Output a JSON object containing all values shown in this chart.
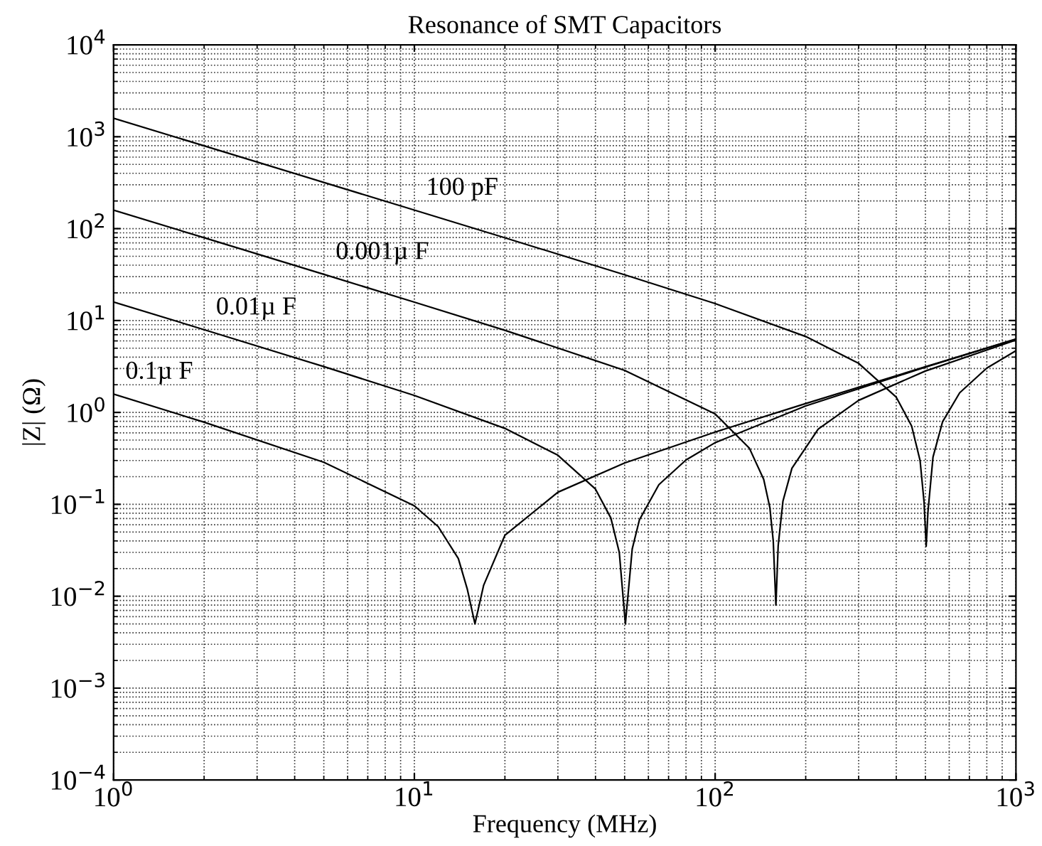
{
  "chart_data": {
    "type": "line",
    "title": "Resonance of SMT Capacitors",
    "xlabel": "Frequency (MHz)",
    "ylabel": "|Z| (Ω)",
    "log": "xy",
    "grid": true,
    "marker": "none",
    "line_style": "solid",
    "xlim": [
      1,
      1000
    ],
    "ylim": [
      0.0001,
      10000
    ],
    "xticks": [
      {
        "value": 1,
        "label": "10$^{0}$"
      },
      {
        "value": 10,
        "label": "10$^{1}$"
      },
      {
        "value": 100,
        "label": "10$^{2}$"
      },
      {
        "value": 1000,
        "label": "10$^{3}$"
      }
    ],
    "yticks": [
      {
        "value": 0.0001,
        "label": "10$^{−4}$"
      },
      {
        "value": 0.001,
        "label": "10$^{−3}$"
      },
      {
        "value": 0.01,
        "label": "10$^{−2}$"
      },
      {
        "value": 0.1,
        "label": "10$^{−1}$"
      },
      {
        "value": 1,
        "label": "10$^{0}$"
      },
      {
        "value": 10,
        "label": "10$^{1}$"
      },
      {
        "value": 100,
        "label": "10$^{2}$"
      },
      {
        "value": 1000,
        "label": "10$^{3}$"
      },
      {
        "value": 10000,
        "label": "10$^{4}$"
      }
    ],
    "series": [
      {
        "name": "100 pF",
        "color": "#000000",
        "x": [
          1,
          2,
          5,
          10,
          20,
          50,
          100,
          200,
          300,
          400,
          450,
          480,
          495,
          503,
          510,
          530,
          570,
          650,
          800,
          1000
        ],
        "values": [
          1591,
          795.7,
          318.3,
          159.1,
          79.45,
          31.5,
          15.29,
          6.7,
          3.42,
          1.466,
          0.71,
          0.3,
          0.105,
          0.035,
          0.0838,
          0.327,
          0.789,
          1.636,
          3.037,
          4.692
        ]
      },
      {
        "name": "0.001µ F",
        "color": "#000000",
        "x": [
          1,
          2,
          5,
          10,
          20,
          50,
          100,
          130,
          145,
          152,
          156,
          159.2,
          162,
          168,
          180,
          220,
          300,
          500,
          1000
        ],
        "values": [
          159.15,
          79.57,
          31.8,
          15.85,
          7.83,
          2.869,
          0.963,
          0.407,
          0.187,
          0.092,
          0.04,
          0.008,
          0.0355,
          0.108,
          0.247,
          0.659,
          1.354,
          2.823,
          6.124
        ]
      },
      {
        "name": "0.01µ F",
        "color": "#000000",
        "x": [
          1,
          2,
          5,
          10,
          20,
          30,
          40,
          45,
          48,
          50.3,
          53,
          56,
          65,
          80,
          100,
          200,
          500,
          1000
        ],
        "values": [
          15.909,
          7.95,
          3.152,
          1.529,
          0.67,
          0.342,
          0.1466,
          0.071,
          0.03,
          0.005,
          0.0327,
          0.0677,
          0.1636,
          0.304,
          0.469,
          1.177,
          3.11,
          6.267
        ]
      },
      {
        "name": "0.1µ F",
        "color": "#000000",
        "x": [
          1,
          2,
          5,
          10,
          12,
          14,
          15,
          15.9,
          17,
          20,
          30,
          50,
          100,
          200,
          500,
          1000
        ],
        "values": [
          1.585,
          0.783,
          0.287,
          0.0963,
          0.0572,
          0.0257,
          0.0119,
          0.005,
          0.0132,
          0.0461,
          0.1354,
          0.282,
          0.612,
          1.249,
          3.138,
          6.282
        ]
      }
    ]
  }
}
